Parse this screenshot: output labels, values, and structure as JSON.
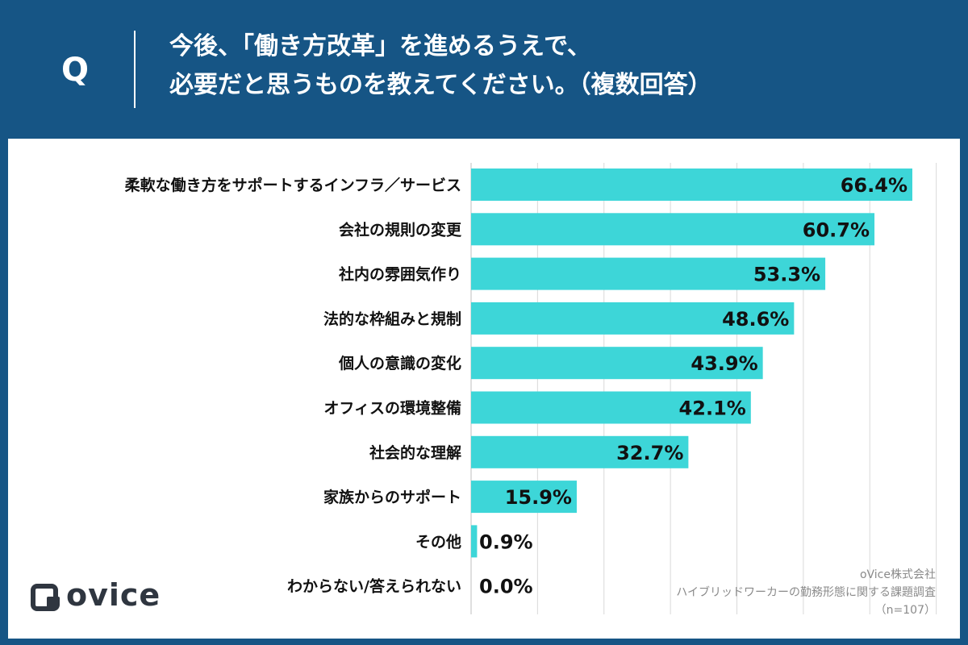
{
  "header": {
    "q_mark": "Q",
    "question_line1": "今後、「働き方改革」を進めるうえで、",
    "question_line2": "必要だと思うものを教えてください。（複数回答）"
  },
  "colors": {
    "background": "#165585",
    "bar": "#3dd6d8",
    "label": "#111111"
  },
  "chart_data": {
    "type": "bar",
    "orientation": "horizontal",
    "categories": [
      "柔軟な働き方をサポートするインフラ／サービス",
      "会社の規則の変更",
      "社内の雰囲気作り",
      "法的な枠組みと規制",
      "個人の意識の変化",
      "オフィスの環境整備",
      "社会的な理解",
      "家族からのサポート",
      "その他",
      "わからない/答えられない"
    ],
    "values": [
      66.4,
      60.7,
      53.3,
      48.6,
      43.9,
      42.1,
      32.7,
      15.9,
      0.9,
      0.0
    ],
    "value_labels": [
      "66.4%",
      "60.7%",
      "53.3%",
      "48.6%",
      "43.9%",
      "42.1%",
      "32.7%",
      "15.9%",
      "0.9%",
      "0.0%"
    ],
    "xlim": [
      0,
      70
    ],
    "grid": true
  },
  "logo": {
    "text": "ovice",
    "icon": "ovice-logo-icon"
  },
  "source": {
    "line1": "oVice株式会社",
    "line2": "ハイブリッドワーカーの勤務形態に関する課題調査",
    "line3": "（n=107）"
  }
}
